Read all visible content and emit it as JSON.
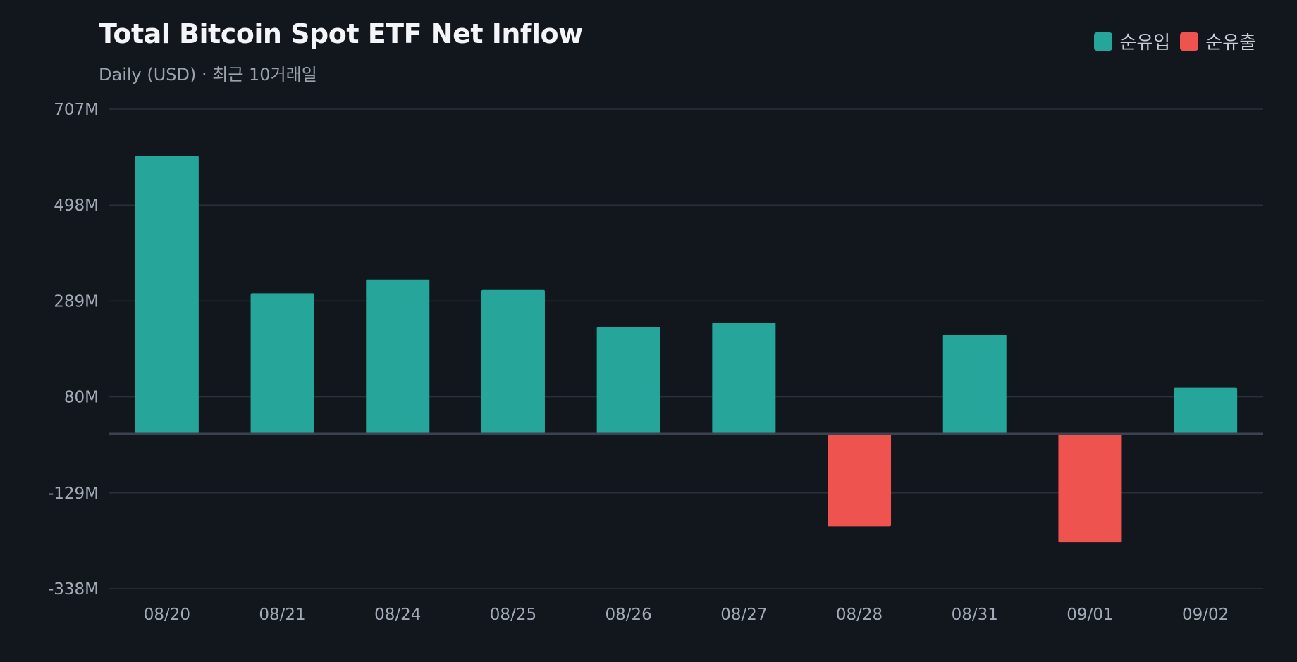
{
  "header": {
    "title": "Total Bitcoin Spot ETF Net Inflow",
    "subtitle": "Daily (USD) · 최근 10거래일"
  },
  "legend": {
    "inflow_label": "순유입",
    "outflow_label": "순유출"
  },
  "colors": {
    "background": "#12161d",
    "inflow": "#26a69a",
    "outflow": "#ef5350",
    "grid": "#2a3039",
    "zero_line": "#3c4350"
  },
  "chart_data": {
    "type": "bar",
    "categories": [
      "08/20",
      "08/21",
      "08/24",
      "08/25",
      "08/26",
      "08/27",
      "08/28",
      "08/31",
      "09/01",
      "09/02"
    ],
    "values": [
      605,
      306,
      336,
      313,
      232,
      242,
      -202,
      216,
      -237,
      100
    ],
    "unit": "M USD",
    "ylim": [
      -338,
      707
    ],
    "yticks": [
      707,
      498,
      289,
      80,
      -129,
      -338
    ],
    "ytick_labels": [
      "707M",
      "498M",
      "289M",
      "80M",
      "-129M",
      "-338M"
    ],
    "grid": true,
    "legend_position": "top-right",
    "title": "Total Bitcoin Spot ETF Net Inflow",
    "subtitle": "Daily (USD) · 최근 10거래일"
  }
}
